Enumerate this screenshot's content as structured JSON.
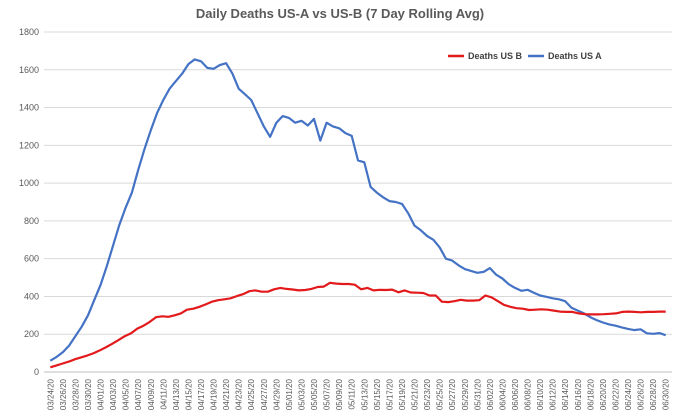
{
  "chart_data": {
    "type": "line",
    "title": "Daily Deaths US-A vs US-B (7 Day Rolling Avg)",
    "xlabel": "",
    "ylabel": "",
    "ylim": [
      0,
      1800
    ],
    "yticks": [
      0,
      200,
      400,
      600,
      800,
      1000,
      1200,
      1400,
      1600,
      1800
    ],
    "grid": true,
    "legend_position": "top-right",
    "x_tick_labels": [
      "03/24/20",
      "03/26/20",
      "03/28/20",
      "03/30/20",
      "04/01/20",
      "04/03/20",
      "04/05/20",
      "04/07/20",
      "04/09/20",
      "04/11/20",
      "04/13/20",
      "04/15/20",
      "04/17/20",
      "04/19/20",
      "04/21/20",
      "04/23/20",
      "04/25/20",
      "04/27/20",
      "04/29/20",
      "05/01/20",
      "05/03/20",
      "05/05/20",
      "05/07/20",
      "05/09/20",
      "05/11/20",
      "05/13/20",
      "05/15/20",
      "05/17/20",
      "05/19/20",
      "05/21/20",
      "05/23/20",
      "05/25/20",
      "05/27/20",
      "05/29/20",
      "05/31/20",
      "06/02/20",
      "06/04/20",
      "06/06/20",
      "06/08/20",
      "06/10/20",
      "06/12/20",
      "06/14/20",
      "06/16/20",
      "06/18/20",
      "06/20/20",
      "06/22/20",
      "06/24/20",
      "06/26/20",
      "06/28/20",
      "06/30/20"
    ],
    "legend_order": [
      "Deaths US B",
      "Deaths US A"
    ],
    "series": [
      {
        "name": "Deaths US A",
        "color": "#4472c4",
        "values": [
          60,
          80,
          105,
          140,
          190,
          240,
          300,
          380,
          460,
          560,
          670,
          780,
          870,
          950,
          1070,
          1180,
          1280,
          1370,
          1440,
          1500,
          1540,
          1580,
          1630,
          1655,
          1645,
          1610,
          1605,
          1625,
          1635,
          1580,
          1500,
          1470,
          1440,
          1370,
          1300,
          1245,
          1320,
          1355,
          1345,
          1320,
          1330,
          1305,
          1340,
          1225,
          1320,
          1300,
          1290,
          1265,
          1250,
          1120,
          1110,
          980,
          950,
          925,
          905,
          900,
          890,
          840,
          775,
          750,
          720,
          700,
          660,
          600,
          590,
          565,
          545,
          535,
          525,
          530,
          550,
          515,
          495,
          465,
          445,
          430,
          435,
          420,
          405,
          398,
          390,
          385,
          375,
          340,
          325,
          310,
          290,
          275,
          262,
          252,
          245,
          236,
          228,
          222,
          226,
          205,
          202,
          206,
          195
        ]
      },
      {
        "name": "Deaths US B",
        "color": "#e31a1c",
        "values": [
          25,
          35,
          45,
          55,
          68,
          78,
          88,
          100,
          115,
          132,
          150,
          170,
          190,
          205,
          230,
          245,
          265,
          290,
          295,
          292,
          300,
          310,
          330,
          335,
          345,
          358,
          372,
          380,
          385,
          390,
          402,
          412,
          428,
          432,
          425,
          425,
          438,
          445,
          440,
          437,
          432,
          434,
          440,
          450,
          452,
          472,
          468,
          466,
          466,
          462,
          438,
          445,
          432,
          435,
          434,
          436,
          422,
          432,
          421,
          420,
          418,
          405,
          405,
          372,
          370,
          375,
          382,
          378,
          378,
          380,
          405,
          395,
          375,
          355,
          345,
          338,
          335,
          328,
          330,
          332,
          330,
          325,
          320,
          318,
          318,
          310,
          306,
          305,
          305,
          306,
          308,
          310,
          318,
          320,
          318,
          316,
          318,
          318,
          320,
          320
        ]
      }
    ]
  }
}
